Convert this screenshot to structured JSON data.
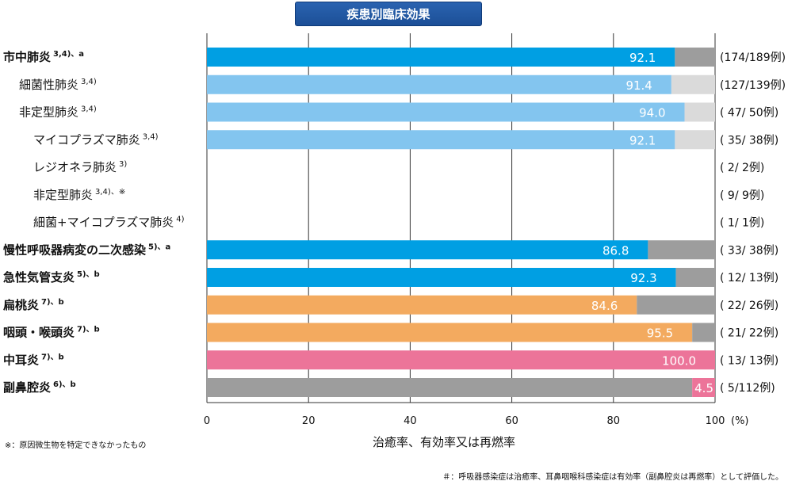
{
  "chart_data": {
    "type": "bar",
    "orientation": "horizontal",
    "stacked_to_100": true,
    "title": "疾患別臨床効果",
    "xlabel": "治癒率、有効率又は再燃率",
    "xlim": [
      0,
      100
    ],
    "xticks": [
      "0",
      "20",
      "40",
      "60",
      "80",
      "100"
    ],
    "xunit": "(%)",
    "grid": true,
    "rows": [
      {
        "label": "市中肺炎",
        "sup": "3,4)、a",
        "bold": true,
        "indent": 0,
        "value": 92.1,
        "value_label": "92.1",
        "count": "(174/189例)",
        "color": "#009fe3",
        "rest_color": "#9d9d9d"
      },
      {
        "label": "細菌性肺炎",
        "sup": "3,4)",
        "bold": false,
        "indent": 1,
        "value": 91.4,
        "value_label": "91.4",
        "count": "(127/139例)",
        "color": "#83c5ef",
        "rest_color": "#dadada"
      },
      {
        "label": "非定型肺炎",
        "sup": "3,4)",
        "bold": false,
        "indent": 1,
        "value": 94.0,
        "value_label": "94.0",
        "count": "( 47/ 50例)",
        "color": "#83c5ef",
        "rest_color": "#dadada"
      },
      {
        "label": "マイコプラズマ肺炎",
        "sup": "3,4)",
        "bold": false,
        "indent": 2,
        "value": 92.1,
        "value_label": "92.1",
        "count": "( 35/ 38例)",
        "color": "#83c5ef",
        "rest_color": "#dadada"
      },
      {
        "label": "レジオネラ肺炎",
        "sup": "3)",
        "bold": false,
        "indent": 2,
        "value": null,
        "value_label": "",
        "count": "(  2/   2例)",
        "color": "",
        "rest_color": ""
      },
      {
        "label": "非定型肺炎",
        "sup": "3,4)、※",
        "bold": false,
        "indent": 2,
        "value": null,
        "value_label": "",
        "count": "(  9/   9例)",
        "color": "",
        "rest_color": ""
      },
      {
        "label": "細菌+マイコプラズマ肺炎",
        "sup": "4)",
        "bold": false,
        "indent": 2,
        "value": null,
        "value_label": "",
        "count": "(  1/   1例)",
        "color": "",
        "rest_color": ""
      },
      {
        "label": "慢性呼吸器病変の二次感染",
        "sup": "5)、a",
        "bold": true,
        "indent": 0,
        "value": 86.8,
        "value_label": "86.8",
        "count": "( 33/ 38例)",
        "color": "#009fe3",
        "rest_color": "#9d9d9d"
      },
      {
        "label": "急性気管支炎",
        "sup": "5)、b",
        "bold": true,
        "indent": 0,
        "value": 92.3,
        "value_label": "92.3",
        "count": "( 12/ 13例)",
        "color": "#009fe3",
        "rest_color": "#9d9d9d"
      },
      {
        "label": "扁桃炎",
        "sup": "7)、b",
        "bold": true,
        "indent": 0,
        "value": 84.6,
        "value_label": "84.6",
        "count": "( 22/ 26例)",
        "color": "#f3aa5f",
        "rest_color": "#9d9d9d"
      },
      {
        "label": "咽頭・喉頭炎",
        "sup": "7)、b",
        "bold": true,
        "indent": 0,
        "value": 95.5,
        "value_label": "95.5",
        "count": "( 21/ 22例)",
        "color": "#f3aa5f",
        "rest_color": "#9d9d9d"
      },
      {
        "label": "中耳炎",
        "sup": "7)、b",
        "bold": true,
        "indent": 0,
        "value": 100.0,
        "value_label": "100.0",
        "count": "( 13/ 13例)",
        "color": "#ec7499",
        "rest_color": "#9d9d9d"
      },
      {
        "label": "副鼻腔炎",
        "sup": "6)、b",
        "bold": true,
        "indent": 0,
        "value": 4.5,
        "value_label": "4.5",
        "count": "(  5/112例)",
        "color": "#ec7499",
        "rest_color": "#9d9d9d",
        "value_at_end": true
      }
    ]
  },
  "footnotes": {
    "left": "※：原因微生物を特定できなかったもの",
    "right": "＃：呼吸器感染症は治癒率、耳鼻咽喉科感染症は有効率（副鼻腔炎は再燃率）として評価した。"
  }
}
